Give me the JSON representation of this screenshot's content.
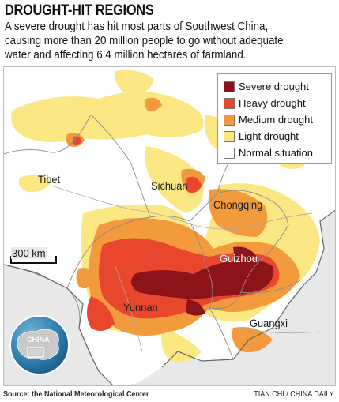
{
  "title": "DROUGHT-HIT REGIONS",
  "lede": "A severe drought has hit most parts of Southwest China, causing more than 20 million people to go without adequate water and affecting 6.4 million hectares of farmland.",
  "legend": [
    {
      "label": "Severe drought",
      "color": "#8c1418"
    },
    {
      "label": "Heavy drought",
      "color": "#e8462d"
    },
    {
      "label": "Medium drought",
      "color": "#f29a3c"
    },
    {
      "label": "Light drought",
      "color": "#fbe77d"
    },
    {
      "label": "Normal situation",
      "color": "#ffffff"
    }
  ],
  "places": {
    "tibet": "Tibet",
    "sichuan": "Sichuan",
    "chongqing": "Chongqing",
    "guizhou": "Guizhou",
    "yunnan": "Yunnan",
    "guangxi": "Guangxi"
  },
  "scale": "300 km",
  "inset_label": "CHINA",
  "source": "Source: the National Meteorological Center",
  "credit": "TIAN CHI / CHINA DAILY"
}
